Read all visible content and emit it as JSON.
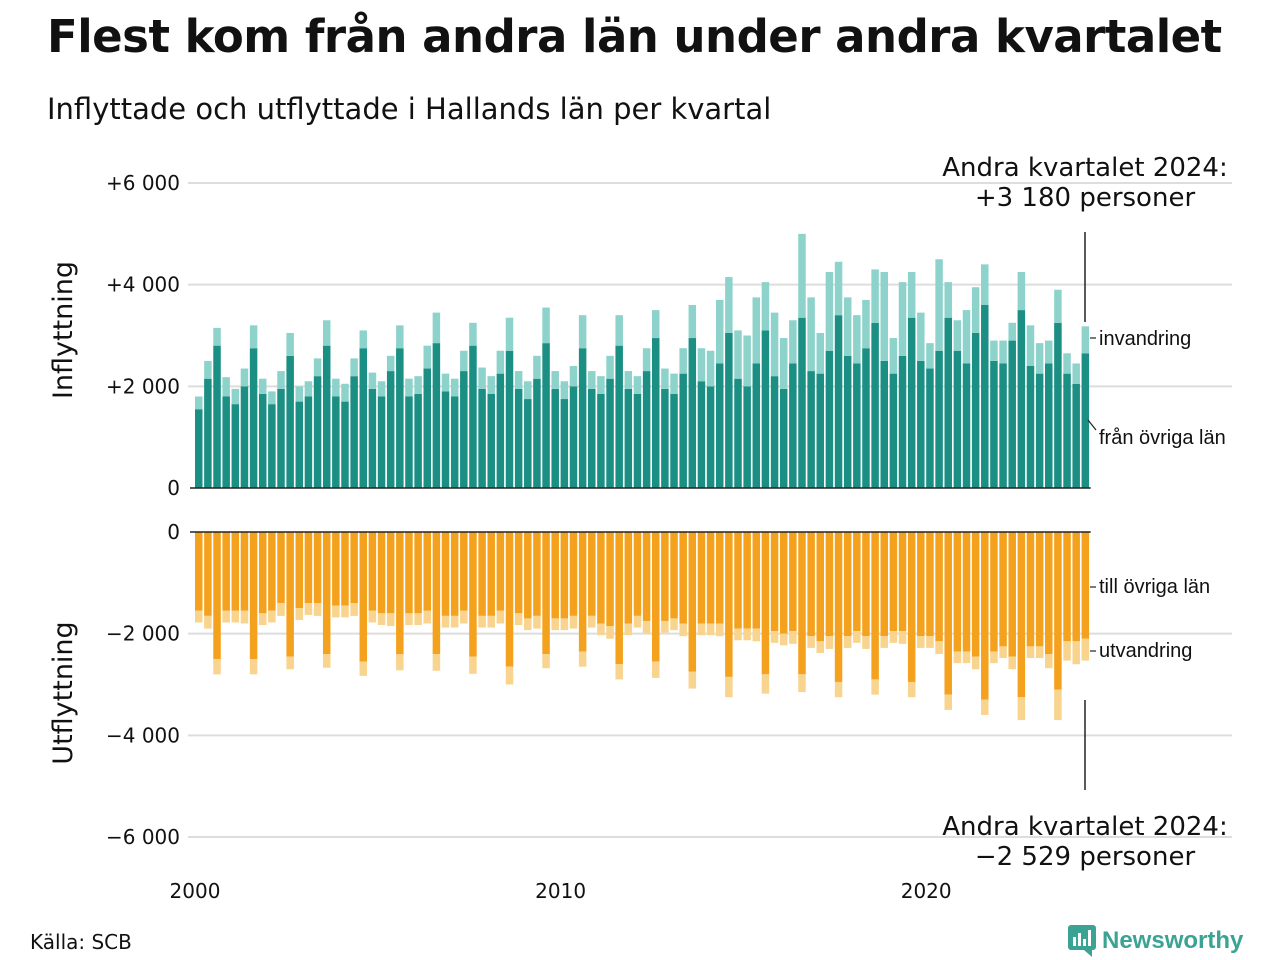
{
  "title": "Flest kom från andra län under andra kvartalet",
  "subtitle": "Inflyttade och utflyttade i Hallands län per kvartal",
  "source": "Källa: SCB",
  "logo_text": "Newsworthy",
  "colors": {
    "inflow_domestic": "#1b8f83",
    "inflow_immigration": "#8ed3cb",
    "outflow_domestic": "#f4a21e",
    "outflow_emigration": "#f8d48e",
    "grid": "#dddddd",
    "logo": "#3aa394"
  },
  "chart_data": {
    "type": "bar",
    "x_start_year": 2000,
    "quarters_per_year": 4,
    "x_ticks": [
      "2000",
      "2010",
      "2020"
    ],
    "panels": [
      {
        "name": "inflow",
        "axis_title": "Inflyttning",
        "ylim": [
          0,
          6000
        ],
        "ticks": [
          {
            "value": 0,
            "label": "0"
          },
          {
            "value": 2000,
            "label": "+2 000"
          },
          {
            "value": 4000,
            "label": "+4 000"
          },
          {
            "value": 6000,
            "label": "+6 000"
          }
        ],
        "series": [
          {
            "name": "från övriga län",
            "values": [
              1550,
              2150,
              2800,
              1800,
              1650,
              2000,
              2750,
              1850,
              1650,
              1950,
              2600,
              1700,
              1800,
              2200,
              2800,
              1800,
              1700,
              2200,
              2750,
              1950,
              1800,
              2300,
              2750,
              1800,
              1850,
              2350,
              2850,
              1900,
              1800,
              2300,
              2800,
              1950,
              1850,
              2250,
              2700,
              1950,
              1750,
              2150,
              2850,
              1950,
              1750,
              2000,
              2750,
              1950,
              1850,
              2150,
              2800,
              1950,
              1850,
              2300,
              2950,
              1950,
              1850,
              2250,
              2950,
              2100,
              2000,
              2450,
              3050,
              2150,
              2000,
              2450,
              3100,
              2200,
              1950,
              2450,
              3350,
              2300,
              2250,
              2700,
              3400,
              2600,
              2450,
              2750,
              3250,
              2500,
              2250,
              2600,
              3350,
              2500,
              2350,
              2700,
              3350,
              2700,
              2450,
              3050,
              3600,
              2500,
              2450,
              2900,
              3500,
              2400,
              2250,
              2450,
              3250,
              2250,
              2050,
              2650
            ]
          },
          {
            "name": "invandring",
            "values": [
              250,
              350,
              350,
              380,
              300,
              350,
              450,
              300,
              250,
              350,
              450,
              300,
              300,
              350,
              500,
              350,
              350,
              350,
              350,
              320,
              300,
              300,
              450,
              350,
              350,
              450,
              600,
              350,
              350,
              400,
              450,
              420,
              350,
              450,
              650,
              350,
              350,
              450,
              700,
              350,
              350,
              400,
              650,
              350,
              350,
              450,
              600,
              350,
              350,
              450,
              550,
              400,
              400,
              500,
              650,
              650,
              700,
              1250,
              1100,
              950,
              1000,
              1300,
              950,
              1250,
              1000,
              850,
              1650,
              1450,
              800,
              1550,
              1050,
              1150,
              950,
              950,
              1050,
              1750,
              700,
              1450,
              900,
              950,
              500,
              1800,
              700,
              600,
              1050,
              900,
              800,
              400,
              450,
              350,
              750,
              800,
              600,
              450,
              650,
              400,
              400,
              530
            ]
          }
        ],
        "annotation": [
          "Andra kvartalet 2024:",
          "+3 180 personer"
        ]
      },
      {
        "name": "outflow",
        "axis_title": "Utflyttning",
        "ylim": [
          -6000,
          0
        ],
        "ticks": [
          {
            "value": 0,
            "label": "0"
          },
          {
            "value": -2000,
            "label": "−2 000"
          },
          {
            "value": -4000,
            "label": "−4 000"
          },
          {
            "value": -6000,
            "label": "−6 000"
          }
        ],
        "series": [
          {
            "name": "till övriga län",
            "values": [
              1550,
              1650,
              2500,
              1550,
              1550,
              1550,
              2500,
              1600,
              1550,
              1400,
              2450,
              1500,
              1400,
              1400,
              2400,
              1450,
              1450,
              1400,
              2550,
              1550,
              1600,
              1600,
              2400,
              1600,
              1600,
              1550,
              2400,
              1650,
              1650,
              1550,
              2450,
              1650,
              1650,
              1550,
              2650,
              1600,
              1700,
              1650,
              2400,
              1700,
              1700,
              1650,
              2350,
              1650,
              1800,
              1850,
              2600,
              1800,
              1650,
              1750,
              2550,
              1750,
              1700,
              1800,
              2750,
              1800,
              1800,
              1800,
              2850,
              1900,
              1900,
              1900,
              2800,
              1950,
              2000,
              1950,
              2800,
              2050,
              2150,
              2050,
              2950,
              2050,
              1950,
              2050,
              2900,
              2050,
              1950,
              1950,
              2950,
              2050,
              2050,
              2150,
              3200,
              2350,
              2350,
              2450,
              3300,
              2350,
              2250,
              2450,
              3250,
              2250,
              2250,
              2400,
              3100,
              2150,
              2150,
              2100
            ]
          },
          {
            "name": "utvandring",
            "values": [
              230,
              250,
              300,
              230,
              230,
              250,
              300,
              230,
              230,
              250,
              250,
              230,
              230,
              250,
              270,
              230,
              230,
              250,
              280,
              230,
              230,
              250,
              320,
              230,
              230,
              250,
              330,
              230,
              230,
              250,
              340,
              230,
              230,
              250,
              350,
              230,
              230,
              250,
              280,
              230,
              230,
              250,
              300,
              230,
              230,
              250,
              300,
              230,
              230,
              250,
              320,
              230,
              230,
              250,
              330,
              230,
              230,
              250,
              400,
              230,
              230,
              250,
              380,
              230,
              230,
              250,
              350,
              230,
              230,
              250,
              300,
              230,
              230,
              250,
              300,
              230,
              230,
              250,
              300,
              230,
              230,
              250,
              300,
              230,
              230,
              250,
              300,
              230,
              230,
              250,
              450,
              230,
              230,
              280,
              600,
              380,
              450,
              429
            ]
          }
        ],
        "annotation": [
          "Andra kvartalet 2024:",
          "−2 529 personer"
        ]
      }
    ]
  }
}
